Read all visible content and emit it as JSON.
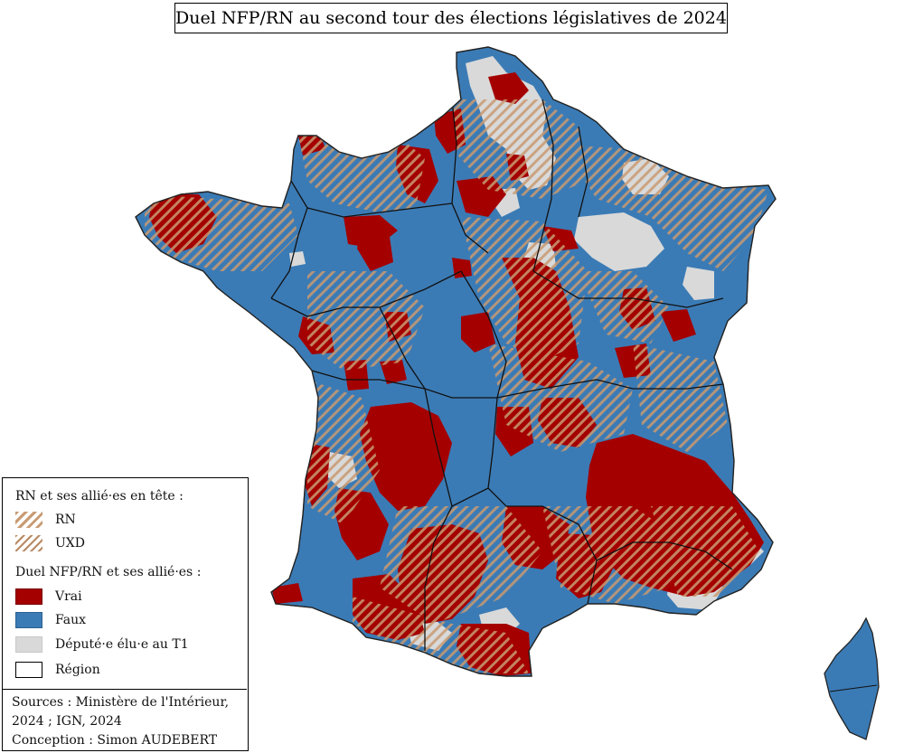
{
  "title": "Duel NFP/RN au second tour des élections législatives de 2024",
  "colors": {
    "vrai": "#a40000",
    "faux": "#3b7bb5",
    "elu_t1": "#d9d9d9",
    "hatch": "#c89a72",
    "region_border": "#000000"
  },
  "legend": {
    "section1_title": "RN et ses allié·es en tête :",
    "rn_label": "RN",
    "uxd_label": "UXD",
    "section2_title": "Duel NFP/RN et ses allié·es :",
    "vrai_label": "Vrai",
    "faux_label": "Faux",
    "elu_label": "Député·e élu·e au T1",
    "region_label": "Région"
  },
  "sources": {
    "line1": "Sources : Ministère de l'Intérieur,",
    "line2": "2024 ; IGN, 2024",
    "line3": "Conception : Simon AUDEBERT"
  }
}
